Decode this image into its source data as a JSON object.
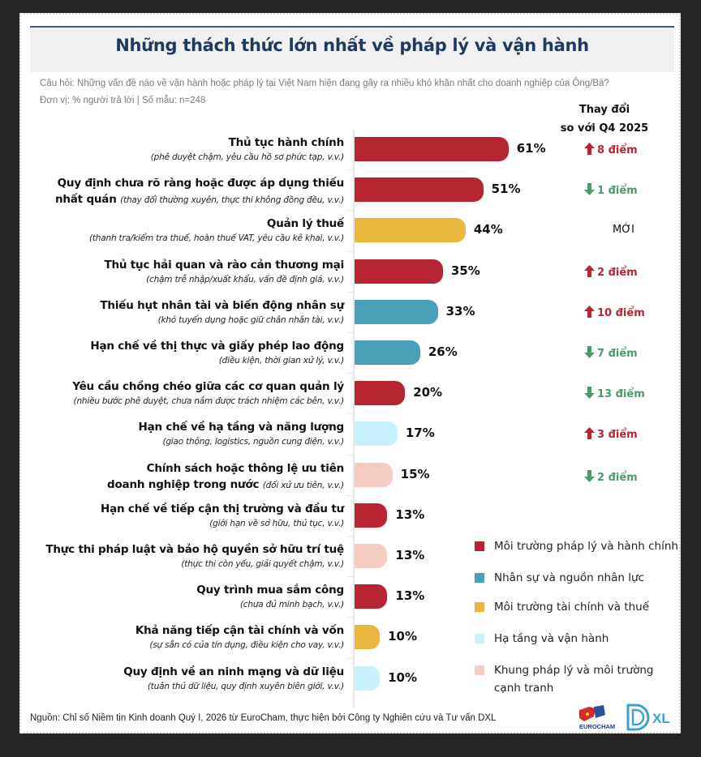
{
  "header": {
    "title": "Những thách thức lớn nhất về pháp lý và vận hành",
    "question": "Câu hỏi: Những vấn đề nào về vận hành hoặc pháp lý tại Việt Nam hiện đang gây ra nhiều khó khăn nhất cho doanh nghiệp của Ông/Bà?",
    "unit": "Đơn vị: % người trả lời | Số mẫu: n=248"
  },
  "change_header": {
    "line1": "Thay đổi",
    "line2": "so với Q4 2025"
  },
  "colors": {
    "legal_admin": "#b72533",
    "hr": "#4aa0b9",
    "finance_tax": "#eab73f",
    "infra_ops": "#c9f1fb",
    "competition": "#f6cbc2",
    "up": "#b72533",
    "down": "#4a9a6a"
  },
  "chart_data": {
    "type": "bar",
    "orientation": "horizontal",
    "title": "Những thách thức lớn nhất về pháp lý và vận hành",
    "xlabel": "% người trả lời",
    "xlim": [
      0,
      100
    ],
    "categories": [
      {
        "label": "Thủ tục hành chính",
        "sub": "(phê duyệt chậm, yêu cầu hồ sơ phức tạp, v.v.)",
        "value": 61,
        "value_label": "61%",
        "group": "legal_admin",
        "change": {
          "dir": "up",
          "text": "8 điểm"
        }
      },
      {
        "label": "Quy định chưa rõ ràng hoặc được áp dụng thiếu",
        "label2": "nhất quán",
        "sub": "(thay đổi thường xuyên, thực thi không đồng đều, v.v.)",
        "value": 51,
        "value_label": "51%",
        "group": "legal_admin",
        "change": {
          "dir": "down",
          "text": "1 điểm"
        }
      },
      {
        "label": "Quản lý thuế",
        "sub": "(thanh tra/kiểm tra thuế, hoàn thuế VAT, yêu cầu kê khai, v.v.)",
        "value": 44,
        "value_label": "44%",
        "group": "finance_tax",
        "change": {
          "dir": "new",
          "text": "MỚI"
        }
      },
      {
        "label": "Thủ tục hải quan và rào cản thương mại",
        "sub": "(chậm trễ nhập/xuất khẩu, vấn đề định giá, v.v.)",
        "value": 35,
        "value_label": "35%",
        "group": "legal_admin",
        "change": {
          "dir": "up",
          "text": "2 điểm"
        }
      },
      {
        "label": "Thiếu hụt nhân tài và biến động nhân sự",
        "sub": "(khó tuyển dụng hoặc giữ chân nhân tài, v.v.)",
        "value": 33,
        "value_label": "33%",
        "group": "hr",
        "change": {
          "dir": "up",
          "text": "10 điểm"
        }
      },
      {
        "label": "Hạn chế về thị thực và giấy phép lao động",
        "sub": "(điều kiện, thời gian xử lý, v.v.)",
        "value": 26,
        "value_label": "26%",
        "group": "hr",
        "change": {
          "dir": "down",
          "text": "7 điểm"
        }
      },
      {
        "label": "Yêu cầu chồng chéo giữa các cơ quan quản lý",
        "sub": "(nhiều bước phê duyệt, chưa nắm được trách nhiệm các bên, v.v.)",
        "value": 20,
        "value_label": "20%",
        "group": "legal_admin",
        "change": {
          "dir": "down",
          "text": "13 điểm"
        }
      },
      {
        "label": "Hạn chế về hạ tầng và năng lượng",
        "sub": "(giao thông, logistics, nguồn cung điện, v.v.)",
        "value": 17,
        "value_label": "17%",
        "group": "infra_ops",
        "change": {
          "dir": "up",
          "text": "3 điểm"
        }
      },
      {
        "label": "Chính sách hoặc thông lệ ưu tiên",
        "label2": "doanh nghiệp trong nước",
        "sub": "(đối xử ưu tiên, v.v.)",
        "value": 15,
        "value_label": "15%",
        "group": "competition",
        "change": {
          "dir": "down",
          "text": "2 điểm"
        }
      },
      {
        "label": "Hạn chế về tiếp cận thị trường và đầu tư",
        "sub": "(giới hạn về sở hữu, thủ tục, v.v.)",
        "value": 13,
        "value_label": "13%",
        "group": "legal_admin",
        "change": null
      },
      {
        "label": "Thực thi pháp luật và bảo hộ quyền sở hữu trí tuệ",
        "sub": "(thực thi còn yếu, giải quyết chậm, v.v.)",
        "value": 13,
        "value_label": "13%",
        "group": "competition",
        "change": null
      },
      {
        "label": "Quy trình mua sắm công",
        "sub": "(chưa đủ minh bạch, v.v.)",
        "value": 13,
        "value_label": "13%",
        "group": "legal_admin",
        "change": null
      },
      {
        "label": "Khả năng tiếp cận tài chính và vốn",
        "sub": "(sự sẵn có của tín dụng, điều kiện cho vay, v.v.)",
        "value": 10,
        "value_label": "10%",
        "group": "finance_tax",
        "change": null
      },
      {
        "label": "Quy định về an ninh mạng và dữ liệu",
        "sub": "(tuân thủ dữ liệu, quy định xuyên biên giới, v.v.)",
        "value": 10,
        "value_label": "10%",
        "group": "infra_ops",
        "change": null
      }
    ],
    "legend": {
      "position": "bottom-right",
      "entries": [
        {
          "key": "legal_admin",
          "label": "Môi trường pháp lý và hành chính"
        },
        {
          "key": "hr",
          "label": "Nhân sự và nguồn nhân lực"
        },
        {
          "key": "finance_tax",
          "label": "Môi trường tài chính và thuế"
        },
        {
          "key": "infra_ops",
          "label": "Hạ tầng và vận hành"
        },
        {
          "key": "competition",
          "label": "Khung pháp lý và môi trường cạnh tranh"
        }
      ]
    }
  },
  "footer": {
    "source": "Nguồn: Chỉ số Niềm tin Kinh doanh Quý I, 2026 từ EuroCham, thực hiện bởi Công ty Nghiên cứu và Tư vấn DXL",
    "logo_eurocham": "EUROCHAM",
    "logo_dxl": "XL"
  }
}
